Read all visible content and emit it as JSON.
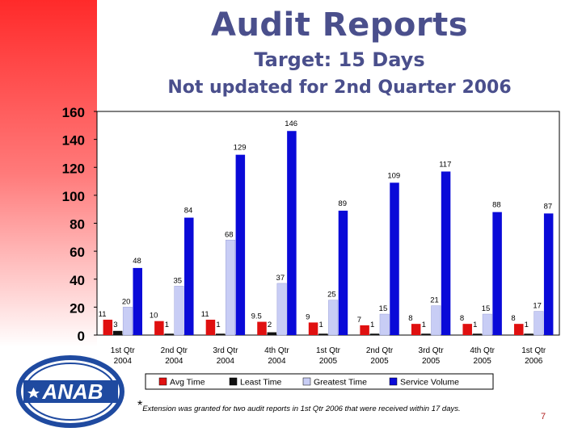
{
  "page": {
    "title": "Audit Reports",
    "subtitle": "Target: 15 Days",
    "subtitle2": "Not updated for 2nd Quarter 2006",
    "footnote_star": "*",
    "footnote": "Extension was granted for two audit reports in 1st Qtr 2006 that were received within 17 days.",
    "page_number": "7",
    "logo_text": "ANAB"
  },
  "colors": {
    "title": "#4a4f8c",
    "avg_time": "#e01010",
    "least_time": "#111111",
    "greatest_time": "#c8cdf5",
    "service_volume": "#0a0ad8",
    "plot_bg": "#ffffff",
    "logo": "#1f4aa0"
  },
  "chart_data": {
    "type": "bar",
    "categories": [
      [
        "1st Qtr",
        "2004"
      ],
      [
        "2nd Qtr",
        "2004"
      ],
      [
        "3rd Qtr",
        "2004"
      ],
      [
        "4th Qtr",
        "2004"
      ],
      [
        "1st Qtr",
        "2005"
      ],
      [
        "2nd Qtr",
        "2005"
      ],
      [
        "3rd Qtr",
        "2005"
      ],
      [
        "4th Qtr",
        "2005"
      ],
      [
        "1st Qtr",
        "2006"
      ]
    ],
    "series": [
      {
        "name": "Avg Time",
        "values": [
          11,
          10,
          11,
          9.5,
          9,
          7,
          8,
          8,
          8
        ],
        "labels": [
          "11",
          "10",
          "11",
          "9.5",
          "9",
          "7",
          "8",
          "8",
          "8"
        ]
      },
      {
        "name": "Least Time",
        "values": [
          3,
          1,
          1,
          2,
          1,
          1,
          1,
          1,
          1
        ],
        "labels": [
          "3",
          "1",
          "1",
          "2",
          "1",
          "1",
          "1",
          "1",
          "1"
        ]
      },
      {
        "name": "Greatest Time",
        "values": [
          20,
          35,
          68,
          37,
          25,
          15,
          21,
          15,
          17
        ],
        "labels": [
          "20",
          "35",
          "68",
          "37",
          "25",
          "15",
          "21",
          "15",
          "17"
        ]
      },
      {
        "name": "Service Volume",
        "values": [
          48,
          84,
          129,
          146,
          89,
          109,
          117,
          88,
          87
        ],
        "labels": [
          "48",
          "84",
          "129",
          "146",
          "89",
          "109",
          "117",
          "88",
          "87"
        ]
      }
    ],
    "yticks": [
      "0",
      "20",
      "40",
      "60",
      "80",
      "100",
      "120",
      "140",
      "160"
    ],
    "ylim": [
      0,
      160
    ],
    "grid": false,
    "legend": "bottom"
  }
}
